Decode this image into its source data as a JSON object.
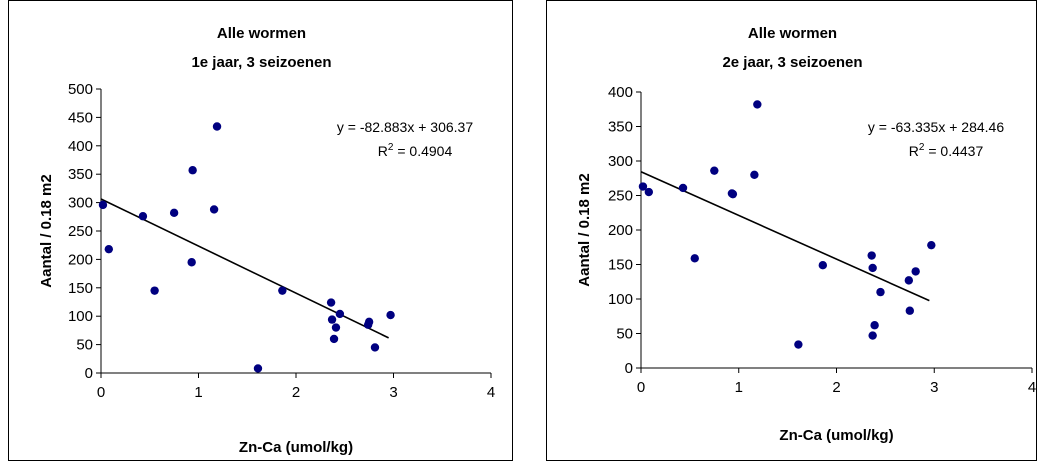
{
  "chart_data": [
    {
      "type": "scatter",
      "title": "Alle wormen",
      "subtitle": "1e jaar, 3 seizoenen",
      "xlabel": "Zn-Ca (umol/kg)",
      "ylabel": "Aantal / 0.18 m2",
      "xlim": [
        0,
        4
      ],
      "ylim": [
        0,
        500
      ],
      "xticks": [
        "0",
        "1",
        "2",
        "3",
        "4"
      ],
      "yticks": [
        "0",
        "50",
        "100",
        "150",
        "200",
        "250",
        "300",
        "350",
        "400",
        "450",
        "500"
      ],
      "grid": false,
      "equation": "y = -82.883x + 306.37",
      "r2": "= 0.4904",
      "r2_label": "R",
      "r2_sup": "2",
      "trendline": {
        "slope": -82.883,
        "intercept": 306.37,
        "x_start": 0,
        "x_end": 2.95
      },
      "color": "#000080",
      "points": [
        {
          "x": 0.02,
          "y": 296
        },
        {
          "x": 0.08,
          "y": 218
        },
        {
          "x": 0.43,
          "y": 276
        },
        {
          "x": 0.55,
          "y": 145
        },
        {
          "x": 0.75,
          "y": 282
        },
        {
          "x": 0.93,
          "y": 195
        },
        {
          "x": 0.94,
          "y": 357
        },
        {
          "x": 1.16,
          "y": 288
        },
        {
          "x": 1.19,
          "y": 434
        },
        {
          "x": 1.61,
          "y": 8
        },
        {
          "x": 1.86,
          "y": 145
        },
        {
          "x": 2.36,
          "y": 124
        },
        {
          "x": 2.37,
          "y": 94
        },
        {
          "x": 2.39,
          "y": 60
        },
        {
          "x": 2.41,
          "y": 80
        },
        {
          "x": 2.45,
          "y": 104
        },
        {
          "x": 2.74,
          "y": 85
        },
        {
          "x": 2.75,
          "y": 90
        },
        {
          "x": 2.81,
          "y": 45
        },
        {
          "x": 2.97,
          "y": 102
        }
      ]
    },
    {
      "type": "scatter",
      "title": "Alle wormen",
      "subtitle": "2e jaar, 3 seizoenen",
      "xlabel": "Zn-Ca (umol/kg)",
      "ylabel": "Aantal / 0.18 m2",
      "xlim": [
        0,
        4
      ],
      "ylim": [
        0,
        400
      ],
      "xticks": [
        "0",
        "1",
        "2",
        "3",
        "4"
      ],
      "yticks": [
        "0",
        "50",
        "100",
        "150",
        "200",
        "250",
        "300",
        "350",
        "400"
      ],
      "grid": false,
      "equation": "y = -63.335x + 284.46",
      "r2": "= 0.4437",
      "r2_label": "R",
      "r2_sup": "2",
      "trendline": {
        "slope": -63.335,
        "intercept": 284.46,
        "x_start": 0,
        "x_end": 2.95
      },
      "color": "#000080",
      "points": [
        {
          "x": 0.02,
          "y": 263
        },
        {
          "x": 0.08,
          "y": 255
        },
        {
          "x": 0.43,
          "y": 261
        },
        {
          "x": 0.55,
          "y": 159
        },
        {
          "x": 0.75,
          "y": 286
        },
        {
          "x": 0.93,
          "y": 253
        },
        {
          "x": 0.94,
          "y": 252
        },
        {
          "x": 1.16,
          "y": 280
        },
        {
          "x": 1.19,
          "y": 382
        },
        {
          "x": 1.61,
          "y": 34
        },
        {
          "x": 1.86,
          "y": 149
        },
        {
          "x": 2.36,
          "y": 163
        },
        {
          "x": 2.37,
          "y": 145
        },
        {
          "x": 2.39,
          "y": 62
        },
        {
          "x": 2.37,
          "y": 47
        },
        {
          "x": 2.45,
          "y": 110
        },
        {
          "x": 2.74,
          "y": 127
        },
        {
          "x": 2.81,
          "y": 140
        },
        {
          "x": 2.75,
          "y": 83
        },
        {
          "x": 2.97,
          "y": 178
        }
      ]
    }
  ]
}
